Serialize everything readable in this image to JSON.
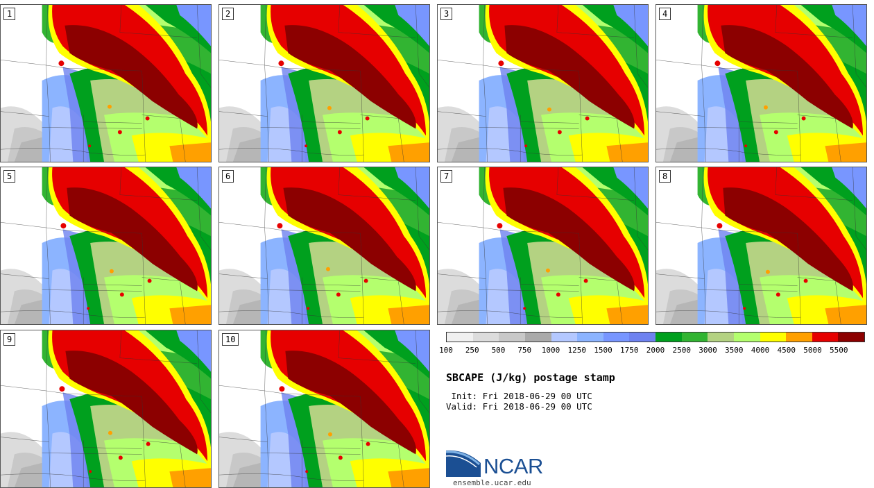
{
  "panels": [
    "1",
    "2",
    "3",
    "4",
    "5",
    "6",
    "7",
    "8",
    "9",
    "10"
  ],
  "legend": {
    "colors": [
      "#f0f0f0",
      "#dcdcdc",
      "#c8c8c8",
      "#aaaaaa",
      "#b4c8ff",
      "#8cb4ff",
      "#7896ff",
      "#6e82f0",
      "#00a01e",
      "#32b432",
      "#b4d282",
      "#b4ff6e",
      "#ffff00",
      "#ffa000",
      "#e60000",
      "#8c0000"
    ],
    "ticks": [
      "100",
      "250",
      "500",
      "750",
      "1000",
      "1250",
      "1500",
      "1750",
      "2000",
      "2500",
      "3000",
      "3500",
      "4000",
      "4500",
      "5000",
      "5500"
    ]
  },
  "title": "SBCAPE (J/kg) postage stamp",
  "init": " Init: Fri 2018-06-29 00 UTC",
  "valid": "Valid: Fri 2018-06-29 00 UTC",
  "logo_text": "NCAR",
  "url": "ensemble.ucar.edu"
}
